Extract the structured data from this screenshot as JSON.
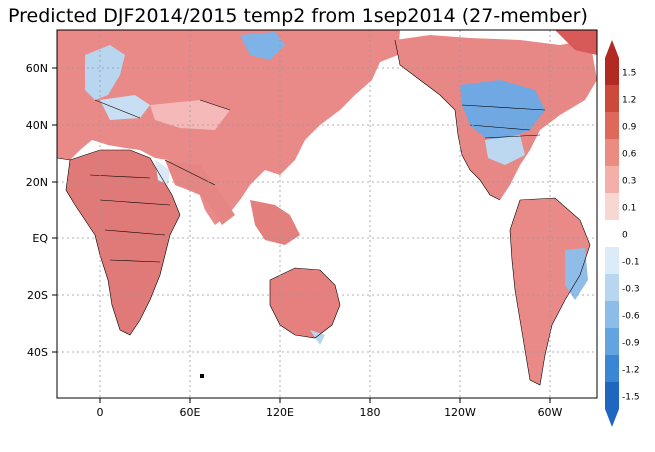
{
  "title": "Predicted DJF2014/2015 temp2 from 1sep2014 (27-member)",
  "map": {
    "projection": "equirectangular",
    "longitude_labels": [
      "0",
      "60E",
      "120E",
      "180",
      "120W",
      "60W"
    ],
    "latitude_labels": [
      "60N",
      "40N",
      "20N",
      "EQ",
      "20S",
      "40S"
    ],
    "gridlines": "dotted",
    "ocean_color": "#ffffff",
    "land_warm_color": "#e8807f",
    "land_mild_color": "#f4b9b8",
    "land_cool_color": "#a8d0ef",
    "land_cold_color": "#4f9be0",
    "border_color": "#000000"
  },
  "colorbar": {
    "labels": [
      "1.5",
      "1.2",
      "0.9",
      "0.6",
      "0.3",
      "0.1",
      "0",
      "-0.1",
      "-0.3",
      "-0.6",
      "-0.9",
      "-1.2",
      "-1.5"
    ],
    "colors": [
      "#b32a22",
      "#cc4a3c",
      "#e0685a",
      "#ea8c80",
      "#f2b0a8",
      "#f8d6d2",
      "#ffffff",
      "#dcebf8",
      "#b9d6f0",
      "#8cbde8",
      "#62a3e0",
      "#3b86d4",
      "#1f66c0"
    ],
    "extend": "both"
  }
}
